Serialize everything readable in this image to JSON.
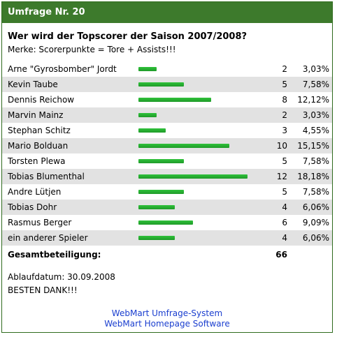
{
  "poll": {
    "title": "Umfrage Nr. 20",
    "question": "Wer wird der Topscorer der Saison 2007/2008?",
    "note": "Merke: Scorerpunkte = Tore + Assists!!!",
    "bar_color": "#1fb02a",
    "header_color": "#3d7a2c",
    "max_votes": 12,
    "options": [
      {
        "name": "Arne \"Gyrosbomber\" Jordt",
        "votes": "2",
        "percent": "3,03%"
      },
      {
        "name": "Kevin Taube",
        "votes": "5",
        "percent": "7,58%"
      },
      {
        "name": "Dennis Reichow",
        "votes": "8",
        "percent": "12,12%"
      },
      {
        "name": "Marvin Mainz",
        "votes": "2",
        "percent": "3,03%"
      },
      {
        "name": "Stephan Schitz",
        "votes": "3",
        "percent": "4,55%"
      },
      {
        "name": "Mario Bolduan",
        "votes": "10",
        "percent": "15,15%"
      },
      {
        "name": "Torsten Plewa",
        "votes": "5",
        "percent": "7,58%"
      },
      {
        "name": "Tobias Blumenthal",
        "votes": "12",
        "percent": "18,18%"
      },
      {
        "name": "Andre Lütjen",
        "votes": "5",
        "percent": "7,58%"
      },
      {
        "name": "Tobias Dohr",
        "votes": "4",
        "percent": "6,06%"
      },
      {
        "name": "Rasmus Berger",
        "votes": "6",
        "percent": "9,09%"
      },
      {
        "name": "ein anderer Spieler",
        "votes": "4",
        "percent": "6,06%"
      }
    ],
    "total_label": "Gesamtbeteiligung:",
    "total_value": "66",
    "expiry": "Ablaufdatum: 30.09.2008",
    "thanks": "BESTEN DANK!!!",
    "footer_links": [
      "WebMart Umfrage-System",
      "WebMart Homepage Software"
    ]
  }
}
